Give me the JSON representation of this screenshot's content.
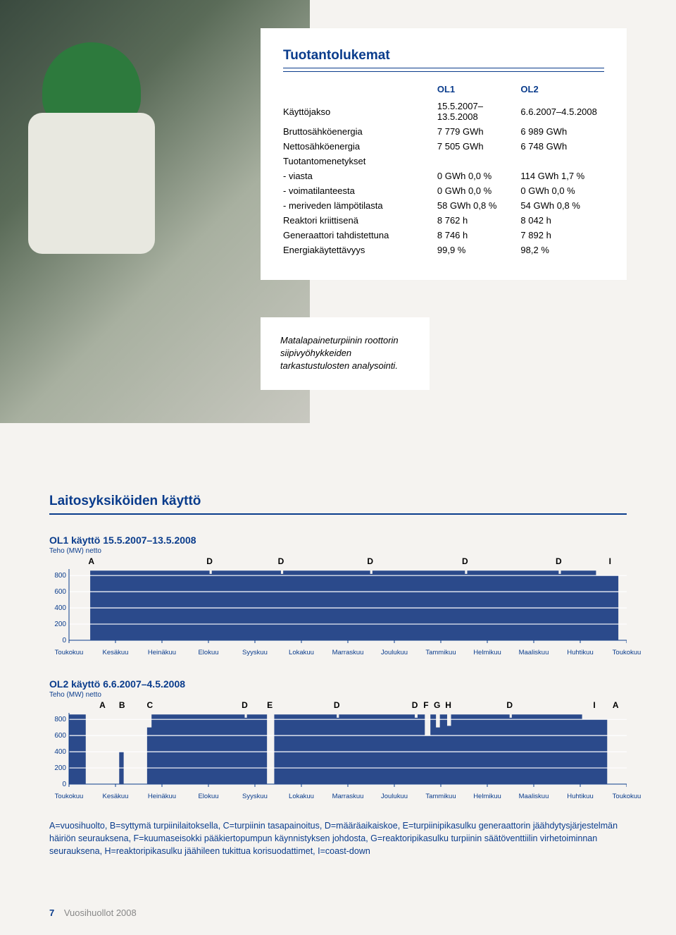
{
  "card": {
    "title": "Tuotantolukemat",
    "colhead1": "OL1",
    "colhead2": "OL2",
    "rows": [
      {
        "label": "Käyttöjakso",
        "v1": "15.5.2007–13.5.2008",
        "v2": "6.6.2007–4.5.2008"
      },
      {
        "label": "Bruttosähköenergia",
        "v1": "7 779 GWh",
        "v2": "6 989 GWh"
      },
      {
        "label": "Nettosähköenergia",
        "v1": "7 505 GWh",
        "v2": "6 748 GWh"
      },
      {
        "label": "Tuotantomenetykset",
        "v1": "",
        "v2": ""
      },
      {
        "label": "- viasta",
        "v1": "0 GWh  0,0 %",
        "v2": "114 GWh  1,7 %"
      },
      {
        "label": "- voimatilanteesta",
        "v1": "0 GWh  0,0 %",
        "v2": "0 GWh  0,0 %"
      },
      {
        "label": "- meriveden lämpötilasta",
        "v1": "58 GWh  0,8 %",
        "v2": "54 GWh  0,8 %"
      },
      {
        "label": "Reaktori kriittisenä",
        "v1": "8 762 h",
        "v2": "8 042 h"
      },
      {
        "label": "Generaattori tahdistettuna",
        "v1": "8 746 h",
        "v2": "7 892 h"
      },
      {
        "label": "Energiakäytettävyys",
        "v1": "99,9 %",
        "v2": "98,2 %"
      }
    ]
  },
  "caption": "Matalapaineturpiinin roottorin siipivyöhykkeiden tarkastustulosten analysointi.",
  "usage": {
    "section_title": "Laitosyksiköiden käyttö",
    "months": [
      "Toukokuu",
      "Kesäkuu",
      "Heinäkuu",
      "Elokuu",
      "Syyskuu",
      "Lokakuu",
      "Marraskuu",
      "Joulukuu",
      "Tammikuu",
      "Helmikuu",
      "Maaliskuu",
      "Huhtikuu",
      "Toukokuu"
    ],
    "yticks": [
      0,
      200,
      400,
      600,
      800
    ],
    "ymax": 880,
    "plot_color": "#2b4a8b",
    "grid_color": "#ffffff",
    "axis_color": "#0a3c8c",
    "bg_color": "#ffffff",
    "chart1": {
      "title": "OL1 käyttö 15.5.2007–13.5.2008",
      "sub": "Teho (MW) netto",
      "events": [
        {
          "label": "A",
          "x": 0.04
        },
        {
          "label": "D",
          "x": 0.252
        },
        {
          "label": "D",
          "x": 0.38
        },
        {
          "label": "D",
          "x": 0.54
        },
        {
          "label": "D",
          "x": 0.71
        },
        {
          "label": "D",
          "x": 0.878
        },
        {
          "label": "I",
          "x": 0.97
        }
      ],
      "series": [
        {
          "from": 0.0,
          "to": 0.038,
          "val": 0
        },
        {
          "from": 0.038,
          "to": 0.252,
          "val": 860
        },
        {
          "from": 0.252,
          "to": 0.256,
          "val": 820
        },
        {
          "from": 0.256,
          "to": 0.38,
          "val": 860
        },
        {
          "from": 0.38,
          "to": 0.384,
          "val": 820
        },
        {
          "from": 0.384,
          "to": 0.54,
          "val": 860
        },
        {
          "from": 0.54,
          "to": 0.544,
          "val": 820
        },
        {
          "from": 0.544,
          "to": 0.71,
          "val": 860
        },
        {
          "from": 0.71,
          "to": 0.714,
          "val": 820
        },
        {
          "from": 0.714,
          "to": 0.878,
          "val": 860
        },
        {
          "from": 0.878,
          "to": 0.882,
          "val": 820
        },
        {
          "from": 0.882,
          "to": 0.945,
          "val": 860
        },
        {
          "from": 0.945,
          "to": 0.985,
          "val": 800
        },
        {
          "from": 0.985,
          "to": 1.0,
          "val": 0
        }
      ]
    },
    "chart2": {
      "title": "OL2 käyttö 6.6.2007–4.5.2008",
      "sub": "Teho (MW) netto",
      "events": [
        {
          "label": "A",
          "x": 0.06
        },
        {
          "label": "B",
          "x": 0.095
        },
        {
          "label": "C",
          "x": 0.145
        },
        {
          "label": "D",
          "x": 0.315
        },
        {
          "label": "E",
          "x": 0.36
        },
        {
          "label": "D",
          "x": 0.48
        },
        {
          "label": "D",
          "x": 0.62
        },
        {
          "label": "F",
          "x": 0.64
        },
        {
          "label": "G",
          "x": 0.66
        },
        {
          "label": "H",
          "x": 0.68
        },
        {
          "label": "D",
          "x": 0.79
        },
        {
          "label": "I",
          "x": 0.942
        },
        {
          "label": "A",
          "x": 0.98
        }
      ],
      "series": [
        {
          "from": 0.0,
          "to": 0.03,
          "val": 860
        },
        {
          "from": 0.03,
          "to": 0.09,
          "val": 0
        },
        {
          "from": 0.09,
          "to": 0.098,
          "val": 400
        },
        {
          "from": 0.098,
          "to": 0.14,
          "val": 0
        },
        {
          "from": 0.14,
          "to": 0.148,
          "val": 700
        },
        {
          "from": 0.148,
          "to": 0.315,
          "val": 860
        },
        {
          "from": 0.315,
          "to": 0.319,
          "val": 820
        },
        {
          "from": 0.319,
          "to": 0.355,
          "val": 860
        },
        {
          "from": 0.355,
          "to": 0.368,
          "val": 0
        },
        {
          "from": 0.368,
          "to": 0.48,
          "val": 860
        },
        {
          "from": 0.48,
          "to": 0.484,
          "val": 820
        },
        {
          "from": 0.484,
          "to": 0.62,
          "val": 860
        },
        {
          "from": 0.62,
          "to": 0.625,
          "val": 820
        },
        {
          "from": 0.625,
          "to": 0.638,
          "val": 860
        },
        {
          "from": 0.638,
          "to": 0.648,
          "val": 600
        },
        {
          "from": 0.648,
          "to": 0.658,
          "val": 860
        },
        {
          "from": 0.658,
          "to": 0.665,
          "val": 700
        },
        {
          "from": 0.665,
          "to": 0.678,
          "val": 860
        },
        {
          "from": 0.678,
          "to": 0.685,
          "val": 720
        },
        {
          "from": 0.685,
          "to": 0.79,
          "val": 860
        },
        {
          "from": 0.79,
          "to": 0.794,
          "val": 820
        },
        {
          "from": 0.794,
          "to": 0.92,
          "val": 860
        },
        {
          "from": 0.92,
          "to": 0.965,
          "val": 800
        },
        {
          "from": 0.965,
          "to": 1.0,
          "val": 0
        }
      ]
    },
    "legend": "A=vuosihuolto, B=syttymä turpiinilaitoksella, C=turpiinin tasapainoitus, D=määräaikaiskoe, E=turpiinipikasulku generaattorin jäähdytysjärjestelmän häiriön seurauksena, F=kuumaseisokki pääkiertopumpun käynnistyksen johdosta, G=reaktoripikasulku turpiinin säätöventtiilin virhetoiminnan seurauksena, H=reaktoripikasulku jäähileen tukittua korisuodattimet, I=coast-down"
  },
  "footer": {
    "page": "7",
    "label": "Vuosihuollot 2008"
  }
}
